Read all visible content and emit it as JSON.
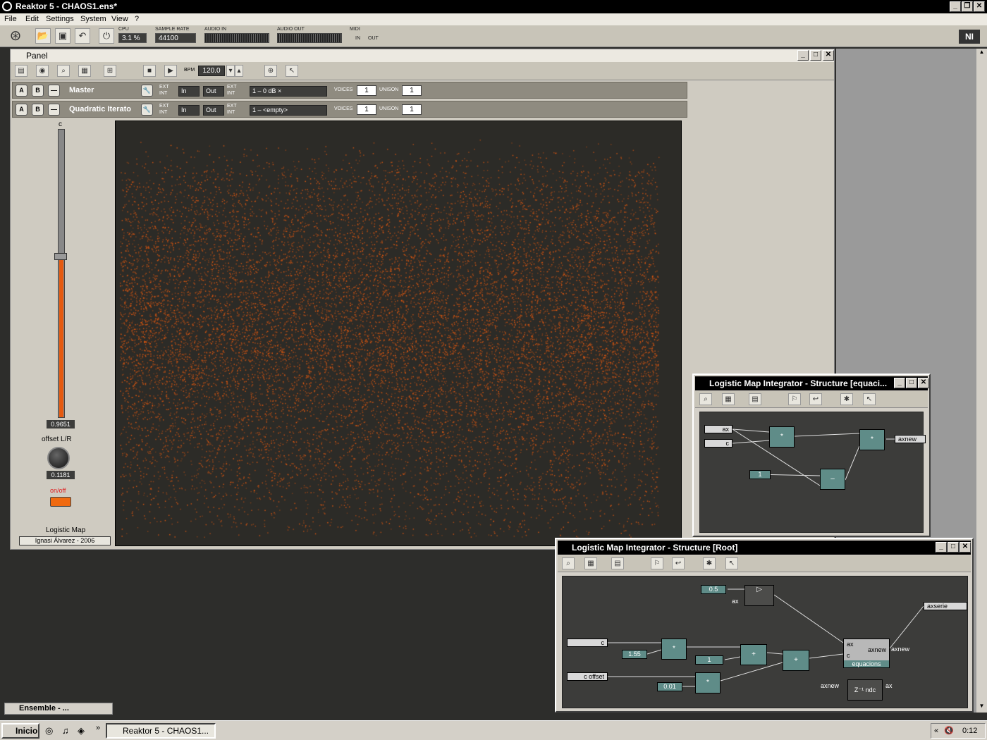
{
  "app": {
    "title": "Reaktor 5 - CHAOS1.ens*"
  },
  "menu": [
    "File",
    "Edit",
    "Settings",
    "System",
    "View",
    "?"
  ],
  "toolbar": {
    "cpu_label": "CPU",
    "cpu_value": "3.1 %",
    "sample_rate_label": "SAMPLE RATE",
    "sample_rate_value": "44100",
    "audio_in_label": "AUDIO IN",
    "audio_out_label": "AUDIO OUT",
    "midi_label": "MIDI",
    "midi_in": "IN",
    "midi_out": "OUT",
    "logo": "NI"
  },
  "panel": {
    "title": "Panel",
    "bpm_label": "BPM",
    "bpm_value": "120.0",
    "instruments": [
      {
        "a": "A",
        "b": "B",
        "name": "Master",
        "in": "In",
        "out": "Out",
        "ext": "EXT",
        "int": "INT",
        "snapshot": "1 – 0 dB ×",
        "voices_label": "VOICES",
        "voices": "1",
        "unison_label": "UNISON",
        "unison": "1"
      },
      {
        "a": "A",
        "b": "B",
        "name": "Quadratic Iterato",
        "in": "In",
        "out": "Out",
        "ext": "EXT",
        "int": "INT",
        "snapshot": "1 – <empty>",
        "voices_label": "VOICES",
        "voices": "1",
        "unison_label": "UNISON",
        "unison": "1"
      }
    ],
    "controls": {
      "slider_label": "c",
      "slider_value": "0.9651",
      "slider_level": 0.56,
      "knob_label": "offset L/R",
      "knob_value": "0.1181",
      "switch_label": "on/off",
      "footer_title": "Logistic Map",
      "footer_credit": "Ignasi Álvarez - 2006"
    },
    "ensemble_tab": "Ensemble - ..."
  },
  "structure_equacions": {
    "title": "Logistic Map Integrator - Structure [equaci...",
    "inputs": [
      "ax",
      "c"
    ],
    "const_one": "1",
    "mult1": "*",
    "mult2": "*",
    "minus": "–",
    "output": "axnew"
  },
  "structure_root": {
    "title": "Logistic Map Integrator - Structure [Root]",
    "const_half": "0.5",
    "ax_label": "ax",
    "in_c": "c",
    "in_c_offset": "c offset",
    "const_155": "1.55",
    "const_1": "1",
    "const_001": "0.01",
    "mult_sym": "*",
    "plus_sym": "+",
    "macro_in_ax": "ax",
    "macro_in_c": "c",
    "macro_out": "axnew",
    "macro_name": "equacions",
    "macro_out_label": "axnew",
    "output": "axserie",
    "delay_in": "axnew",
    "delay_label": "Z⁻¹ ndc",
    "delay_out": "ax"
  },
  "taskbar": {
    "start": "Inicio",
    "task": "Reaktor 5 - CHAOS1...",
    "clock": "0:12"
  },
  "colors": {
    "accent": "#e65a10",
    "module": "#5f8c88",
    "scope_bg": "#2c2b27"
  }
}
